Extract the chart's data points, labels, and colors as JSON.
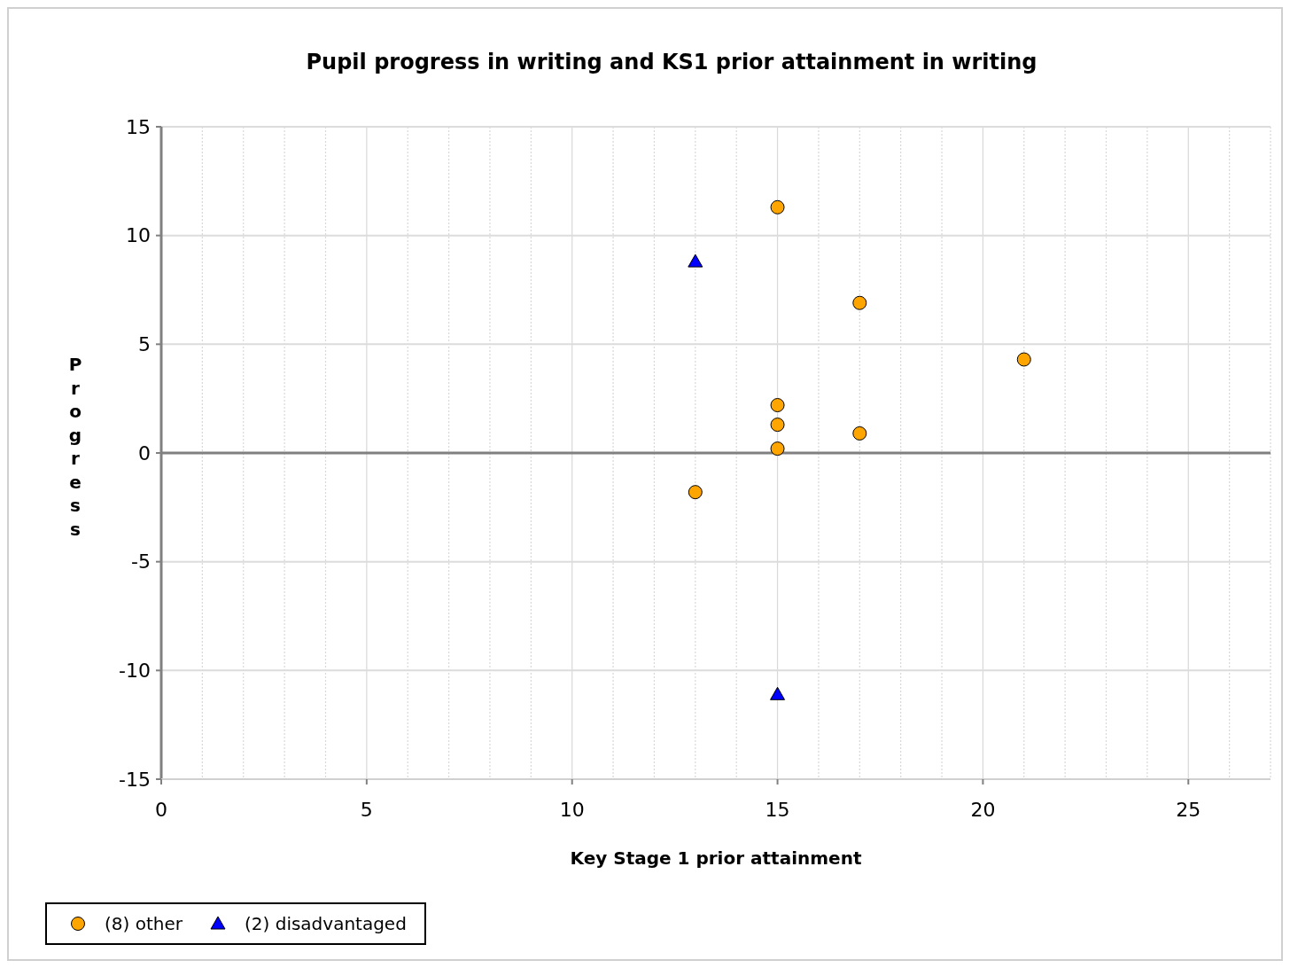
{
  "chart_data": {
    "type": "scatter",
    "title": "Pupil progress in writing and KS1 prior attainment in writing",
    "xlabel": "Key Stage 1 prior attainment",
    "ylabel": "Progress",
    "xlim": [
      0,
      27
    ],
    "ylim": [
      -15,
      15
    ],
    "xticks": [
      0,
      {
        "value": 1,
        "label": null
      },
      {
        "value": 2,
        "label": null
      },
      {
        "value": 3,
        "label": null
      },
      {
        "value": 4,
        "label": null
      },
      5,
      {
        "value": 6,
        "label": null
      },
      {
        "value": 7,
        "label": null
      },
      {
        "value": 8,
        "label": null
      },
      {
        "value": 9,
        "label": null
      },
      10,
      {
        "value": 11,
        "label": null
      },
      {
        "value": 12,
        "label": null
      },
      {
        "value": 13,
        "label": null
      },
      {
        "value": 14,
        "label": null
      },
      15,
      {
        "value": 16,
        "label": null
      },
      {
        "value": 17,
        "label": null
      },
      {
        "value": 18,
        "label": null
      },
      {
        "value": 19,
        "label": null
      },
      20,
      {
        "value": 21,
        "label": null
      },
      {
        "value": 22,
        "label": null
      },
      {
        "value": 23,
        "label": null
      },
      {
        "value": 24,
        "label": null
      },
      25,
      {
        "value": 26,
        "label": null
      },
      {
        "value": 27,
        "label": null
      }
    ],
    "yticks": [
      -15,
      -10,
      -5,
      0,
      5,
      10,
      15
    ],
    "grid": true,
    "legend": "bottom left",
    "ref_lines": [
      {
        "axis": "y",
        "value": 0,
        "color": "#808080"
      }
    ],
    "series": [
      {
        "name": "(8) other",
        "color": "#ffa500",
        "marker": "circle",
        "x": [
          15,
          17,
          21,
          15,
          15,
          17,
          15,
          13
        ],
        "values": [
          11.3,
          6.9,
          4.3,
          2.2,
          1.3,
          0.9,
          0.2,
          -1.8
        ]
      },
      {
        "name": "(2) disadvantaged",
        "color": "#0000ff",
        "marker": "triangle",
        "x": [
          13,
          15
        ],
        "values": [
          8.8,
          -11.1
        ]
      }
    ]
  }
}
